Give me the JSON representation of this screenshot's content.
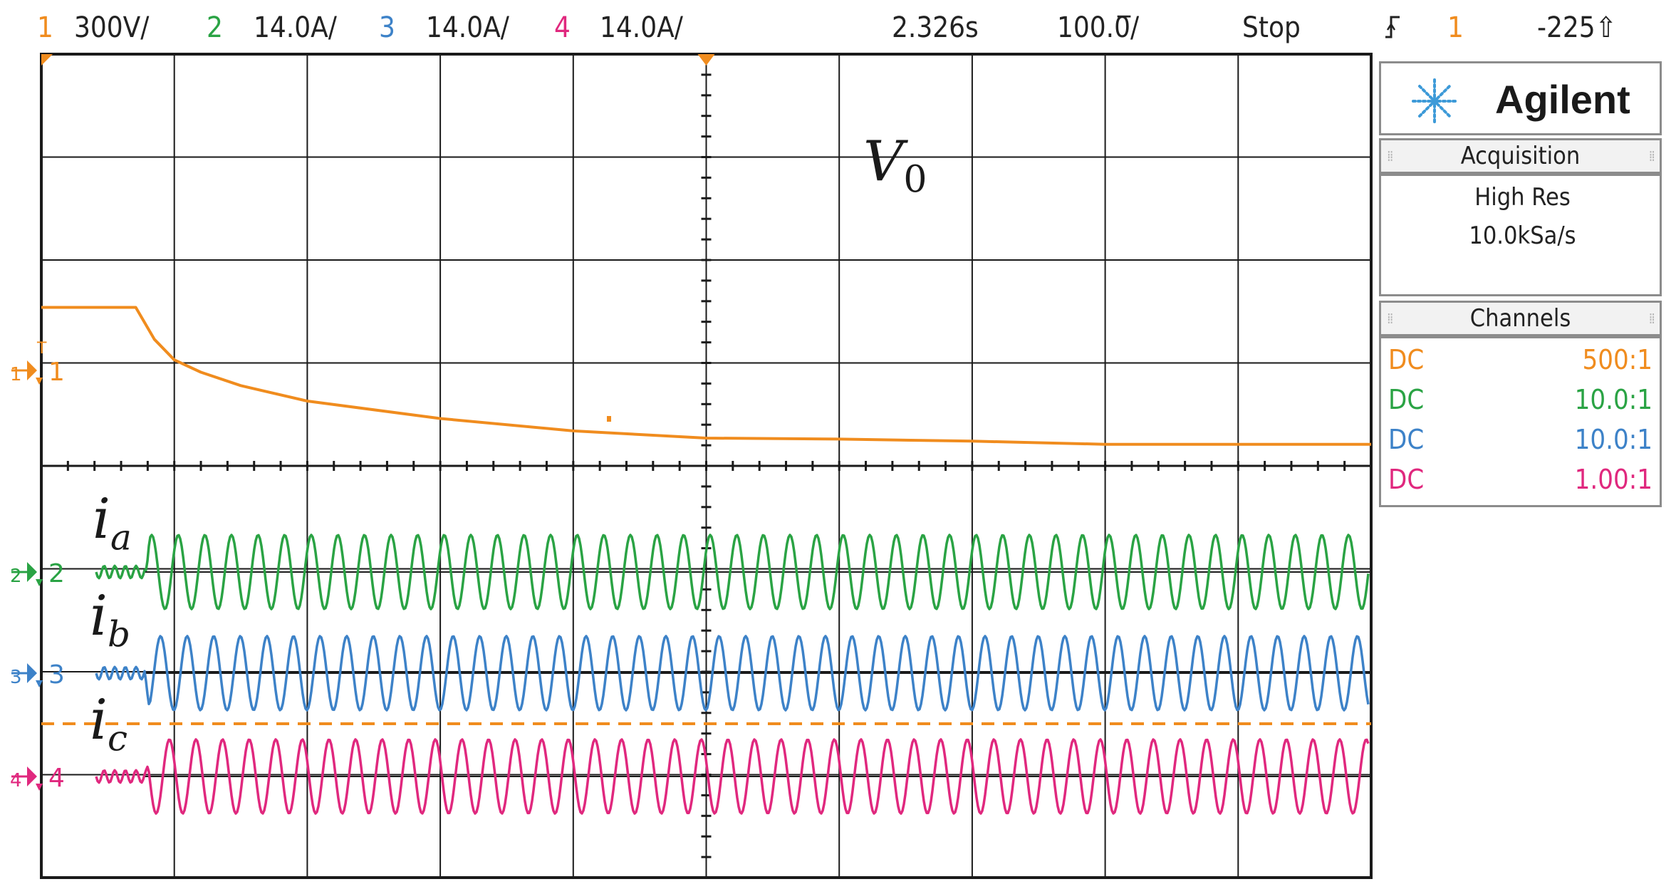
{
  "colors": {
    "ch1": "#f08c1e",
    "ch2": "#2aa344",
    "ch3": "#3d82c8",
    "ch4": "#e0287e",
    "grid": "#1a1a1a",
    "background": "#ffffff"
  },
  "status_bar": {
    "ch1_num": "1",
    "ch1_scale": "300V/",
    "ch2_num": "2",
    "ch2_scale": "14.0A/",
    "ch3_num": "3",
    "ch3_scale": "14.0A/",
    "ch4_num": "4",
    "ch4_scale": "14.0A/",
    "time_position": "2.326s",
    "time_scale": "100.0̅/",
    "run_state": "Stop",
    "trigger_icon": "trigger-edge-icon",
    "trigger_source": "1",
    "trigger_level": "-225⇧"
  },
  "side_panel": {
    "brand": "Agilent",
    "logo_icon": "agilent-spark-icon",
    "acquisition": {
      "header": "Acquisition",
      "mode": "High Res",
      "rate": "10.0kSa/s"
    },
    "channels": {
      "header": "Channels",
      "rows": [
        {
          "coupling": "DC",
          "probe": "500:1",
          "color": "#f08c1e"
        },
        {
          "coupling": "DC",
          "probe": "10.0:1",
          "color": "#2aa344"
        },
        {
          "coupling": "DC",
          "probe": "10.0:1",
          "color": "#3d82c8"
        },
        {
          "coupling": "DC",
          "probe": "1.00:1",
          "color": "#e0287e"
        }
      ]
    }
  },
  "markers": {
    "ch1": "1",
    "ch2": "2",
    "ch3": "3",
    "ch4": "4",
    "trigger_T": "T"
  },
  "annotations": {
    "v0_main": "V",
    "v0_sub": "0",
    "ia_main": "i",
    "ia_sub": "a",
    "ib_main": "i",
    "ib_sub": "b",
    "ic_main": "i",
    "ic_sub": "c"
  },
  "trace_data": {
    "ch1_voltage_divisions": {
      "x_div": [
        0,
        0.71,
        0.85,
        1.0,
        1.2,
        1.5,
        2.0,
        3.0,
        4.0,
        5.0,
        6.0,
        7.0,
        8.0,
        9.0,
        10.0
      ],
      "level_div": [
        -1.54,
        -1.54,
        -1.23,
        -1.03,
        -0.91,
        -0.78,
        -0.63,
        -0.46,
        -0.34,
        -0.27,
        -0.26,
        -0.24,
        -0.21,
        -0.21,
        -0.21
      ]
    },
    "phase_currents": {
      "start_div": 0.78,
      "cycles_per_div": 5.0,
      "amplitude_div": 0.36,
      "pre_start_ripple_div": 0.06
    },
    "trigger_level_div": 3.49
  }
}
